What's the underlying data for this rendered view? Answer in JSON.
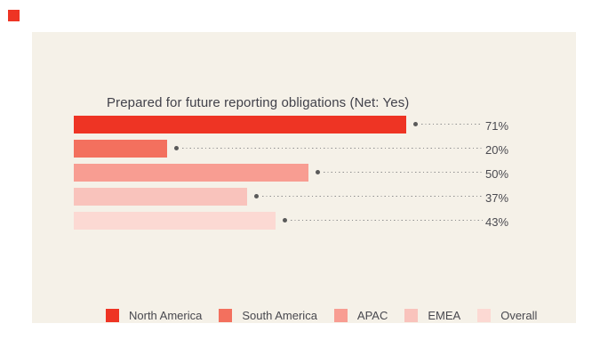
{
  "accent": {
    "square_color": "#ee3424"
  },
  "panel": {
    "background": "#f5f1e8"
  },
  "chart_data": {
    "type": "bar",
    "orientation": "horizontal",
    "title": "Prepared for future reporting obligations (Net: Yes)",
    "categories": [
      "North America",
      "South America",
      "APAC",
      "EMEA",
      "Overall"
    ],
    "values": [
      71,
      20,
      50,
      37,
      43
    ],
    "value_labels": [
      "71%",
      "20%",
      "50%",
      "37%",
      "43%"
    ],
    "unit": "%",
    "xlim": [
      0,
      100
    ],
    "grid": false,
    "bar_colors": [
      "#ee3424",
      "#f3705e",
      "#f89d92",
      "#f9c3bc",
      "#fcd9d3"
    ],
    "leader_dot_color": "#5a5a5a",
    "leader_line_color": "#8f8f8f",
    "value_label_color": "#4a4a50",
    "title_color": "#41414a",
    "legend_position": "bottom"
  }
}
